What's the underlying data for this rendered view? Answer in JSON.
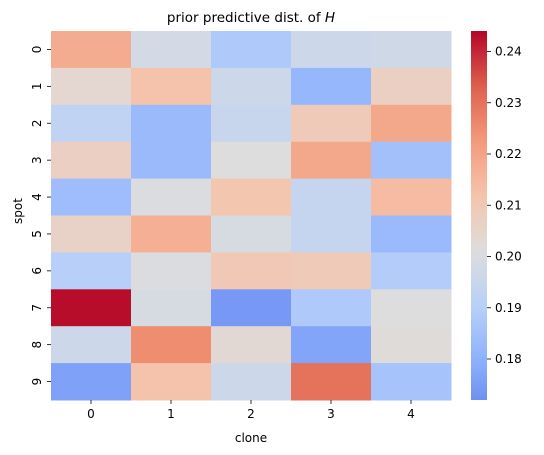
{
  "chart_data": {
    "type": "heatmap",
    "title": "prior predictive dist. of ",
    "title_var": "H",
    "xlabel": "clone",
    "ylabel": "spot",
    "x_categories": [
      "0",
      "1",
      "2",
      "3",
      "4"
    ],
    "y_categories": [
      "0",
      "1",
      "2",
      "3",
      "4",
      "5",
      "6",
      "7",
      "8",
      "9"
    ],
    "values": [
      [
        0.218,
        0.198,
        0.188,
        0.196,
        0.197
      ],
      [
        0.204,
        0.212,
        0.196,
        0.182,
        0.207
      ],
      [
        0.193,
        0.183,
        0.195,
        0.209,
        0.219
      ],
      [
        0.207,
        0.183,
        0.201,
        0.219,
        0.185
      ],
      [
        0.184,
        0.2,
        0.211,
        0.194,
        0.214
      ],
      [
        0.206,
        0.217,
        0.199,
        0.194,
        0.183
      ],
      [
        0.19,
        0.2,
        0.21,
        0.209,
        0.189
      ],
      [
        0.243,
        0.199,
        0.174,
        0.188,
        0.201
      ],
      [
        0.196,
        0.225,
        0.203,
        0.177,
        0.202
      ],
      [
        0.176,
        0.212,
        0.196,
        0.23,
        0.186
      ]
    ],
    "colormap": "coolwarm",
    "vmin": 0.172,
    "vmax": 0.244,
    "colorbar_ticks": [
      0.18,
      0.19,
      0.2,
      0.21,
      0.22,
      0.23,
      0.24
    ],
    "colorbar_tick_labels": [
      "0.18",
      "0.19",
      "0.20",
      "0.21",
      "0.22",
      "0.23",
      "0.24"
    ],
    "colorbar_position": "right",
    "grid": false
  }
}
